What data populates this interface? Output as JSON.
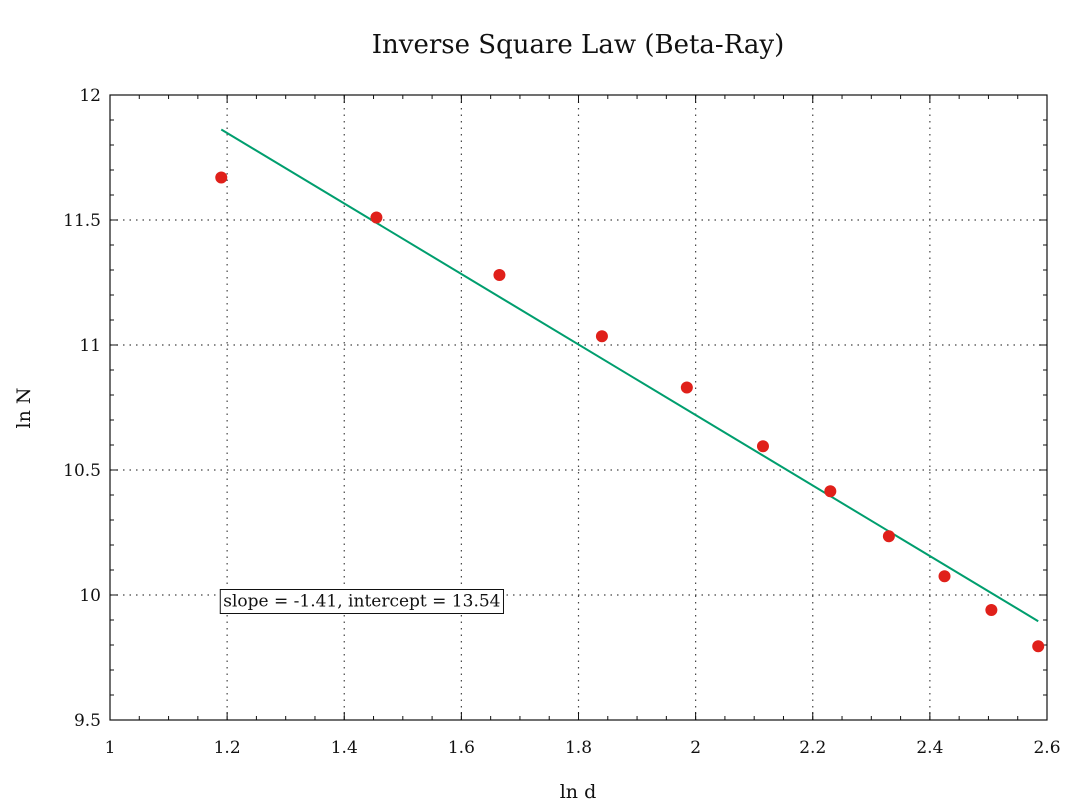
{
  "chart_data": {
    "type": "scatter",
    "title": "Inverse Square Law (Beta-Ray)",
    "xlabel": "ln d",
    "ylabel": "ln N",
    "xlim": [
      1,
      2.6
    ],
    "ylim": [
      9.5,
      12
    ],
    "xticks": [
      "1",
      "1.2",
      "1.4",
      "1.6",
      "1.8",
      "2",
      "2.2",
      "2.4",
      "2.6"
    ],
    "yticks": [
      "9.5",
      "10",
      "10.5",
      "11",
      "11.5",
      "12"
    ],
    "grid": true,
    "series": [
      {
        "kind": "points",
        "color": "#e0201a",
        "x": [
          1.19,
          1.455,
          1.665,
          1.84,
          1.985,
          2.115,
          2.23,
          2.33,
          2.425,
          2.505,
          2.585
        ],
        "y": [
          11.67,
          11.51,
          11.28,
          11.035,
          10.83,
          10.595,
          10.415,
          10.235,
          10.075,
          9.94,
          9.795
        ]
      },
      {
        "kind": "fit-line",
        "color": "#009e6e",
        "slope": -1.41,
        "intercept": 13.54,
        "x_range": [
          1.19,
          2.585
        ]
      }
    ],
    "annotation": {
      "text": "slope = -1.41, intercept = 13.54",
      "x": 1.19,
      "y": 9.99
    }
  }
}
